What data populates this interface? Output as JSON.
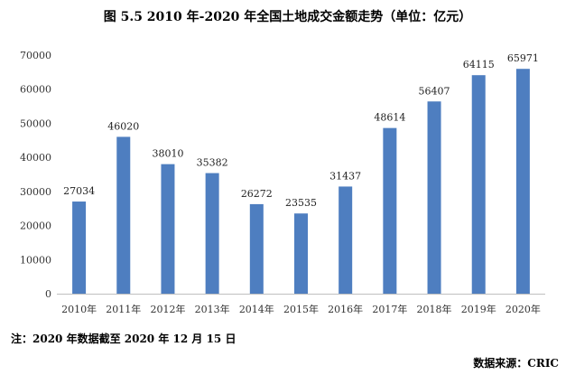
{
  "title": "图 5.5 2010 年-2020 年全国土地成交金额走势（单位：亿元）",
  "note": "注：2020 年数据截至 2020 年 12 月 15 日",
  "source": "数据来源：CRIC",
  "chart_data": {
    "type": "bar",
    "title": "图 5.5 2010 年-2020 年全国土地成交金额走势（单位：亿元）",
    "xlabel": "",
    "ylabel": "",
    "categories": [
      "2010年",
      "2011年",
      "2012年",
      "2013年",
      "2014年",
      "2015年",
      "2016年",
      "2017年",
      "2018年",
      "2019年",
      "2020年"
    ],
    "values": [
      27034,
      46020,
      38010,
      35382,
      26272,
      23535,
      31437,
      48614,
      56407,
      64115,
      65971
    ],
    "ylim": [
      0,
      70000
    ],
    "yticks": [
      0,
      10000,
      20000,
      30000,
      40000,
      50000,
      60000,
      70000
    ],
    "bar_color": "#4e7ec0",
    "grid": false,
    "legend": "none"
  }
}
